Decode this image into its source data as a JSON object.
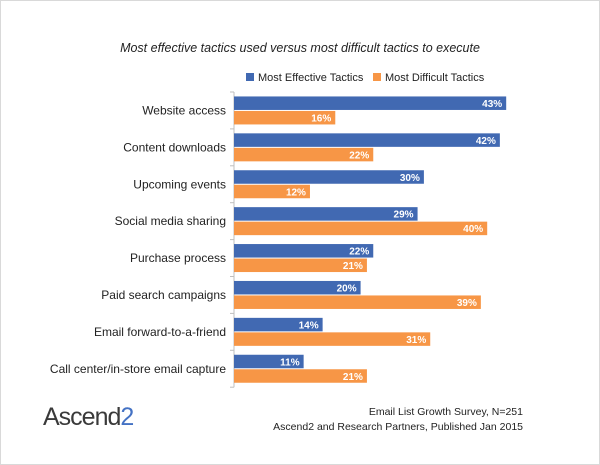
{
  "chart_data": {
    "type": "bar",
    "orientation": "horizontal",
    "title": "Most effective tactics used versus most difficult tactics to execute",
    "categories": [
      "Website access",
      "Content downloads",
      "Upcoming events",
      "Social media sharing",
      "Purchase process",
      "Paid search campaigns",
      "Email forward-to-a-friend",
      "Call center/in-store email capture"
    ],
    "series": [
      {
        "name": "Most Effective Tactics",
        "color": "#4169b2",
        "values": [
          43,
          42,
          30,
          29,
          22,
          20,
          14,
          11
        ]
      },
      {
        "name": "Most Difficult Tactics",
        "color": "#f79646",
        "values": [
          16,
          22,
          12,
          40,
          21,
          39,
          31,
          21
        ]
      }
    ],
    "value_suffix": "%",
    "legend_position": "top",
    "grid": false
  },
  "logo": {
    "text_main": "Ascend",
    "text_accent": "2"
  },
  "source": {
    "line1": "Email List Growth Survey, N=251",
    "line2": "Ascend2 and Research Partners, Published Jan 2015"
  }
}
